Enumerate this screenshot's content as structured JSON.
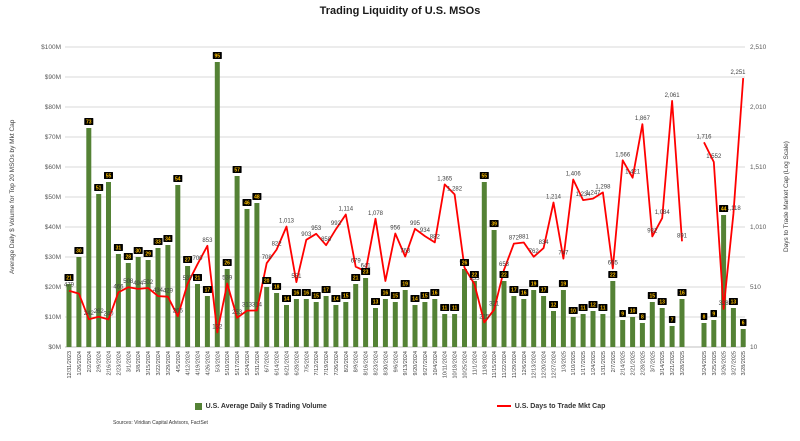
{
  "title": "Trading Liquidity of U.S. MSOs",
  "left_axis_title": "Average Daily $ Volume for Top 20 MSOs by Mkt Cap",
  "right_axis_title": "Days to Trade Market Cap (Log Scale)",
  "legend": {
    "bar_label": "U.S. Average Daily $ Trading Volume",
    "line_label": "U.S. Days to Trade Mkt Cap"
  },
  "sources": "Sources: Viridian Capital Advisors, FactSet",
  "colors": {
    "bar": "#548235",
    "line": "#ff0000",
    "bar_label_bg": "#000000",
    "bar_label_text": "#ffc000",
    "grid": "#d9d9d9",
    "axis_line": "#bfbfbf",
    "tick_text": "#595959",
    "point_label_text": "#3f3f3f"
  },
  "chart_data": {
    "type": "bar",
    "subtype": "combo bar+line, dual axis",
    "title": "Trading Liquidity of U.S. MSOs",
    "categories": [
      "12/31/2023",
      "1/26/2024",
      "2/2/2024",
      "2/9/2024",
      "2/16/2024",
      "2/23/2024",
      "3/1/2024",
      "3/8/2024",
      "3/15/2024",
      "3/22/2024",
      "3/29/2024",
      "4/5/2024",
      "4/12/2024",
      "4/19/2024",
      "4/26/2024",
      "5/3/2024",
      "5/10/2024",
      "5/17/2024",
      "5/24/2024",
      "5/31/2024",
      "6/7/2024",
      "6/14/2024",
      "6/21/2024",
      "6/28/2024",
      "7/5/2024",
      "7/12/2024",
      "7/19/2024",
      "7/26/2024",
      "8/2/2024",
      "8/9/2024",
      "8/16/2024",
      "8/23/2024",
      "8/30/2024",
      "9/6/2024",
      "9/13/2024",
      "9/20/2024",
      "9/27/2024",
      "10/4/2024",
      "10/11/2024",
      "10/18/2024",
      "10/25/2024",
      "11/1/2024",
      "11/8/2024",
      "11/15/2024",
      "11/22/2024",
      "11/29/2024",
      "12/6/2024",
      "12/13/2024",
      "12/20/2024",
      "12/27/2024",
      "1/3/2025",
      "1/10/2025",
      "1/17/2025",
      "1/24/2025",
      "1/31/2025",
      "2/7/2025",
      "2/14/2025",
      "2/21/2025",
      "2/28/2025",
      "3/7/2025",
      "3/14/2025",
      "3/21/2025",
      "3/28/2025",
      "3/24/2025",
      "3/25/2025",
      "3/26/2025",
      "3/27/2025",
      "3/28/2025"
    ],
    "gap_after_index": 62,
    "series": [
      {
        "name": "U.S. Average Daily $ Trading Volume",
        "type": "bar",
        "axis": "left",
        "unit": "$M",
        "values": [
          21,
          30,
          73,
          51,
          55,
          31,
          28,
          30,
          29,
          33,
          34,
          54,
          27,
          21,
          17,
          95,
          26,
          57,
          46,
          48,
          20,
          18,
          14,
          16,
          16,
          15,
          17,
          14,
          15,
          21,
          23,
          13,
          16,
          15,
          19,
          14,
          15,
          16,
          11,
          11,
          26,
          22,
          55,
          39,
          22,
          17,
          16,
          19,
          17,
          12,
          19,
          10,
          11,
          12,
          11,
          22,
          9,
          10,
          8,
          15,
          13,
          7,
          16,
          8,
          9,
          44,
          13,
          6
        ]
      },
      {
        "name": "U.S. Days to Trade Mkt Cap",
        "type": "line",
        "axis": "right",
        "unit": "days",
        "values": [
          479,
          455,
          242,
          262,
          240,
          466,
          508,
          494,
          502,
          434,
          429,
          266,
          537,
          700,
          853,
          132,
          539,
          253,
          313,
          314,
          708,
          822,
          1013,
          551,
          903,
          953,
          858,
          992,
          1114,
          679,
          641,
          1078,
          560,
          956,
          763,
          995,
          934,
          882,
          1365,
          1282,
          671,
          535,
          215,
          321,
          653,
          872,
          881,
          762,
          834,
          1214,
          747,
          1406,
          1234,
          1247,
          1298,
          665,
          1566,
          1421,
          1867,
          932,
          1084,
          2061,
          891,
          1716,
          1552,
          328,
          1118,
          2251
        ],
        "unlabeled_indices": [
          1,
          32
        ]
      }
    ],
    "left_axis": {
      "min": 0,
      "max": 100,
      "ticks": [
        "$0M",
        "$10M",
        "$20M",
        "$30M",
        "$40M",
        "$50M",
        "$60M",
        "$70M",
        "$80M",
        "$90M",
        "$100M"
      ]
    },
    "right_axis": {
      "min": 10,
      "max": 2510,
      "ticks": [
        "10",
        "510",
        "1,010",
        "1,510",
        "2,010",
        "2,510"
      ]
    },
    "grid": true,
    "legend_position": "bottom"
  }
}
